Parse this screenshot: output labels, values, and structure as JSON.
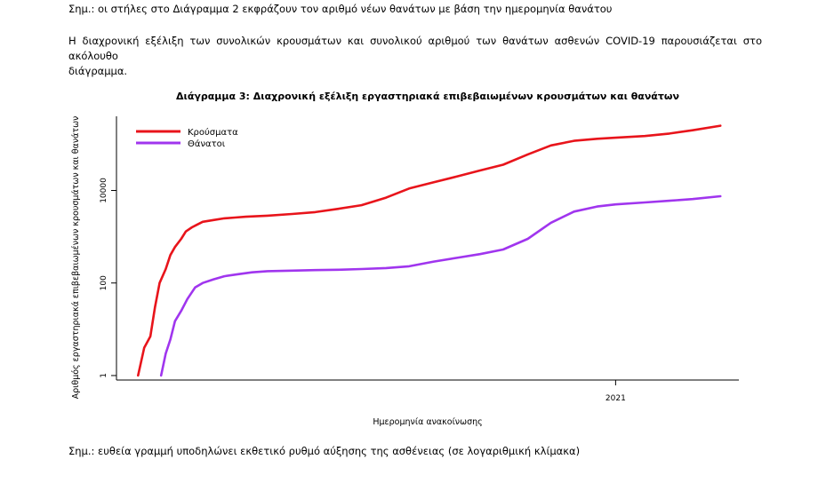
{
  "note_top": "Σημ.: οι στήλες στο Διάγραμμα 2 εκφράζουν τον αριθμό νέων θανάτων με βάση την ημερομηνία θανάτου",
  "paragraph_line1": "Η διαχρονική εξέλιξη των συνολικών κρουσμάτων και συνολικού αριθμού των θανάτων ασθενών COVID-19 παρουσιάζεται στο ακόλουθο",
  "paragraph_line2": "διάγραμμα.",
  "note_bottom": "Σημ.: ευθεία γραμμή υποδηλώνει εκθετικό ρυθμό αύξησης της ασθένειας (σε λογαριθμική κλίμακα)",
  "chart_data": {
    "type": "line",
    "title": "Διάγραμμα 3: Διαχρονική εξέλιξη εργαστηριακά επιβεβαιωμένων κρουσμάτων και θανάτων",
    "xlabel": "Ημερομηνία ανακοίνωσης",
    "ylabel": "Αριθμός εργαστηριακά επιβεβαιωμένων κρουσμάτων και θανάτων",
    "y_scale": "log",
    "ylim": [
      0.8,
      400000
    ],
    "yticks": [
      1,
      100,
      10000
    ],
    "ytick_labels": [
      "1",
      "100",
      "10000"
    ],
    "xlim": [
      "2020-02-12",
      "2021-03-22"
    ],
    "xticks": [
      "2021-01-01"
    ],
    "xtick_labels": [
      "2021"
    ],
    "legend": "top-left",
    "grid": false,
    "series": [
      {
        "name": "Κρούσματα",
        "color": "#e8141b",
        "x": [
          "2020-02-26",
          "2020-03-01",
          "2020-03-05",
          "2020-03-08",
          "2020-03-11",
          "2020-03-15",
          "2020-03-18",
          "2020-03-21",
          "2020-03-25",
          "2020-03-28",
          "2020-04-01",
          "2020-04-04",
          "2020-04-08",
          "2020-04-15",
          "2020-04-22",
          "2020-04-29",
          "2020-05-06",
          "2020-05-20",
          "2020-06-05",
          "2020-06-20",
          "2020-07-05",
          "2020-07-20",
          "2020-08-05",
          "2020-08-20",
          "2020-09-05",
          "2020-09-20",
          "2020-10-05",
          "2020-10-20",
          "2020-11-05",
          "2020-11-20",
          "2020-12-05",
          "2020-12-20",
          "2021-01-01",
          "2021-01-20",
          "2021-02-05",
          "2021-02-20",
          "2021-03-10"
        ],
        "y": [
          1,
          4,
          7,
          30,
          100,
          200,
          400,
          600,
          900,
          1300,
          1600,
          1800,
          2100,
          2300,
          2500,
          2600,
          2700,
          2850,
          3100,
          3400,
          4000,
          4800,
          7000,
          11000,
          15000,
          20000,
          27000,
          36000,
          60000,
          94000,
          118000,
          131000,
          138000,
          150000,
          170000,
          200000,
          250000
        ]
      },
      {
        "name": "Θάνατοι",
        "color": "#a035ee",
        "x": [
          "2020-03-12",
          "2020-03-15",
          "2020-03-18",
          "2020-03-21",
          "2020-03-25",
          "2020-03-29",
          "2020-04-03",
          "2020-04-08",
          "2020-04-15",
          "2020-04-22",
          "2020-05-01",
          "2020-05-10",
          "2020-05-20",
          "2020-06-05",
          "2020-06-20",
          "2020-07-05",
          "2020-07-20",
          "2020-08-05",
          "2020-08-20",
          "2020-09-05",
          "2020-09-20",
          "2020-10-05",
          "2020-10-20",
          "2020-11-05",
          "2020-11-20",
          "2020-12-05",
          "2020-12-20",
          "2021-01-01",
          "2021-01-20",
          "2021-02-05",
          "2021-02-20",
          "2021-03-10"
        ],
        "y": [
          1,
          3,
          6,
          15,
          25,
          45,
          80,
          100,
          120,
          140,
          155,
          170,
          180,
          185,
          190,
          193,
          200,
          210,
          230,
          290,
          350,
          420,
          530,
          900,
          2000,
          3500,
          4500,
          5000,
          5500,
          6000,
          6500,
          7500
        ]
      }
    ]
  }
}
